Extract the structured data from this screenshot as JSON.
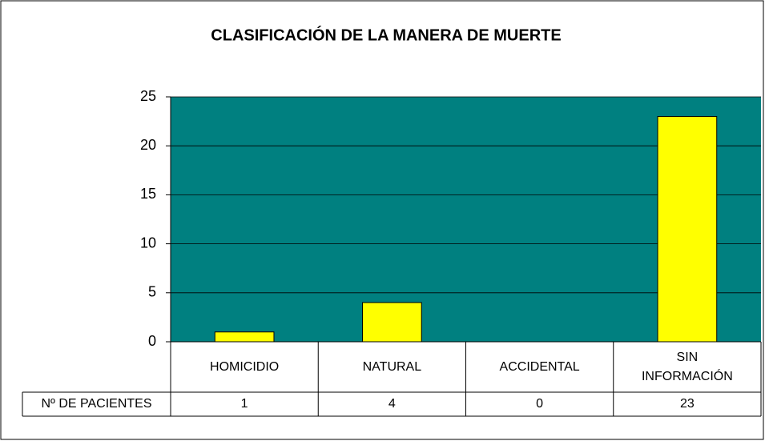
{
  "chart_data": {
    "type": "bar",
    "title": "CLASIFICACIÓN DE LA MANERA DE MUERTE",
    "categories": [
      "HOMICIDIO",
      "NATURAL",
      "ACCIDENTAL",
      "SIN INFORMACIÓN"
    ],
    "series": [
      {
        "name": "Nº DE PACIENTES",
        "color": "#ffff00",
        "values": [
          1,
          4,
          0,
          23
        ]
      }
    ],
    "plot_background": "#008080",
    "ylim": [
      0,
      25
    ],
    "yticks": [
      0,
      5,
      10,
      15,
      20,
      25
    ],
    "grid": true
  }
}
